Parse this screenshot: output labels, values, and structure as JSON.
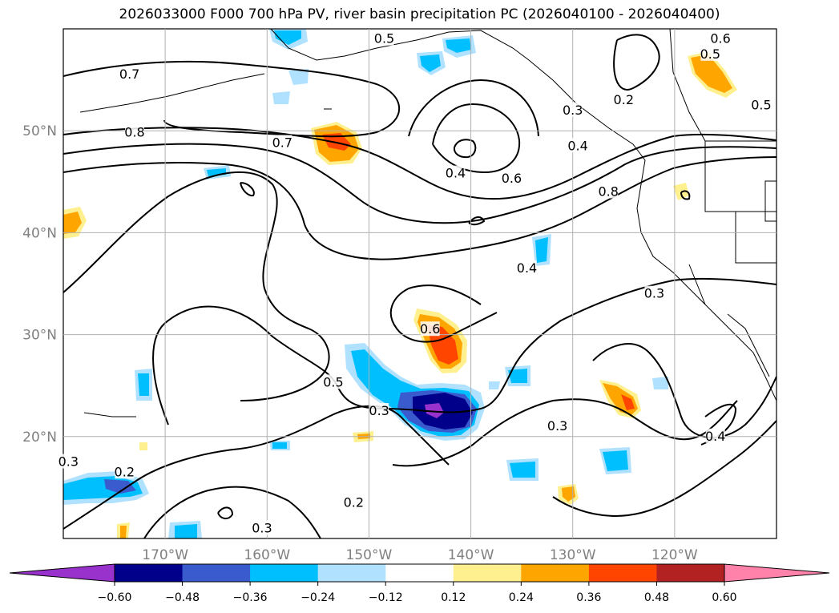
{
  "chart_data": {
    "type": "map",
    "title": "2026033000 F000 700 hPa PV, river basin precipitation PC (2026040100 - 2026040400)",
    "lon_range": [
      -180,
      -110
    ],
    "lat_range": [
      10,
      60
    ],
    "lon_ticks": [
      {
        "value": -170,
        "label": "170°W"
      },
      {
        "value": -160,
        "label": "160°W"
      },
      {
        "value": -150,
        "label": "150°W"
      },
      {
        "value": -140,
        "label": "140°W"
      },
      {
        "value": -130,
        "label": "130°W"
      },
      {
        "value": -120,
        "label": "120°W"
      }
    ],
    "lat_ticks": [
      {
        "value": 20,
        "label": "20°N"
      },
      {
        "value": 30,
        "label": "30°N"
      },
      {
        "value": 40,
        "label": "40°N"
      },
      {
        "value": 50,
        "label": "50°N"
      }
    ],
    "grid": true,
    "colorbar": {
      "ticks": [
        "−0.60",
        "−0.48",
        "−0.36",
        "−0.24",
        "−0.12",
        "0.12",
        "0.24",
        "0.36",
        "0.48",
        "0.60"
      ],
      "colors": [
        "#9932cc",
        "#00008b",
        "#3a5bcd",
        "#00bfff",
        "#b0e2ff",
        "#ffffff",
        "#fff08f",
        "#ffa500",
        "#ff4500",
        "#b22222",
        "#ff82ab"
      ]
    },
    "contour_labels": [
      {
        "text": "0.5",
        "lon": -148.5,
        "lat": 59.0
      },
      {
        "text": "0.6",
        "lon": -115.5,
        "lat": 59.0
      },
      {
        "text": "0.5",
        "lon": -116.5,
        "lat": 57.5
      },
      {
        "text": "0.5",
        "lon": -111.5,
        "lat": 52.5
      },
      {
        "text": "0.7",
        "lon": -173.5,
        "lat": 55.5
      },
      {
        "text": "0.2",
        "lon": -125.0,
        "lat": 53.0
      },
      {
        "text": "0.3",
        "lon": -130.0,
        "lat": 52.0
      },
      {
        "text": "0.4",
        "lon": -129.5,
        "lat": 48.5
      },
      {
        "text": "0.8",
        "lon": -173.0,
        "lat": 49.8
      },
      {
        "text": "0.7",
        "lon": -158.5,
        "lat": 48.8
      },
      {
        "text": "0.4",
        "lon": -141.5,
        "lat": 45.8
      },
      {
        "text": "0.6",
        "lon": -136.0,
        "lat": 45.3
      },
      {
        "text": "0.8",
        "lon": -126.5,
        "lat": 44.0
      },
      {
        "text": "0.4",
        "lon": -134.5,
        "lat": 36.5
      },
      {
        "text": "0.3",
        "lon": -122.0,
        "lat": 34.0
      },
      {
        "text": "0.6",
        "lon": -144.0,
        "lat": 30.5
      },
      {
        "text": "0.5",
        "lon": -153.5,
        "lat": 25.3
      },
      {
        "text": "0.3",
        "lon": -149.0,
        "lat": 22.5
      },
      {
        "text": "0.3",
        "lon": -131.5,
        "lat": 21.0
      },
      {
        "text": "0.4",
        "lon": -116.0,
        "lat": 20.0
      },
      {
        "text": "0.3",
        "lon": -179.5,
        "lat": 17.5
      },
      {
        "text": "0.2",
        "lon": -174.0,
        "lat": 16.5
      },
      {
        "text": "0.2",
        "lon": -151.5,
        "lat": 13.5
      },
      {
        "text": "0.3",
        "lon": -160.5,
        "lat": 11.0
      }
    ]
  }
}
